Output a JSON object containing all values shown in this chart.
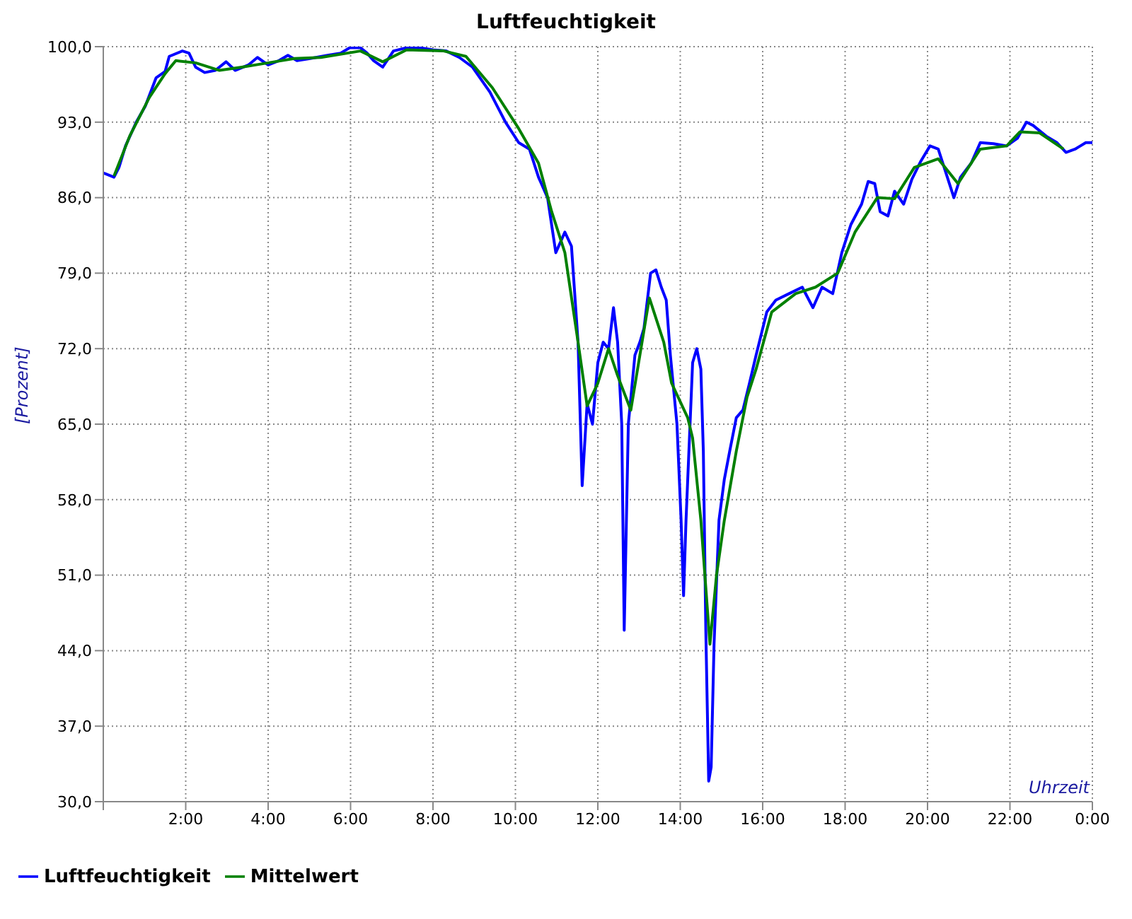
{
  "chart_data": {
    "type": "line",
    "title": "Luftfeuchtigkeit",
    "xlabel": "Uhrzeit",
    "ylabel": "[Prozent]",
    "xlim": [
      0,
      24
    ],
    "xticks": [
      {
        "value": 0,
        "label": null
      },
      {
        "value": 2,
        "label": "2:00"
      },
      {
        "value": 4,
        "label": "4:00"
      },
      {
        "value": 6,
        "label": "6:00"
      },
      {
        "value": 8,
        "label": "8:00"
      },
      {
        "value": 10,
        "label": "10:00"
      },
      {
        "value": 12,
        "label": "12:00"
      },
      {
        "value": 14,
        "label": "14:00"
      },
      {
        "value": 16,
        "label": "16:00"
      },
      {
        "value": 18,
        "label": "18:00"
      },
      {
        "value": 20,
        "label": "20:00"
      },
      {
        "value": 22,
        "label": "22:00"
      },
      {
        "value": 24,
        "label": "0:00"
      }
    ],
    "ylim": [
      30,
      100
    ],
    "yticks": [
      {
        "value": 30,
        "label": "30,0"
      },
      {
        "value": 37,
        "label": "37,0"
      },
      {
        "value": 44,
        "label": "44,0"
      },
      {
        "value": 51,
        "label": "51,0"
      },
      {
        "value": 58,
        "label": "58,0"
      },
      {
        "value": 65,
        "label": "65,0"
      },
      {
        "value": 72,
        "label": "72,0"
      },
      {
        "value": 79,
        "label": "79,0"
      },
      {
        "value": 86,
        "label": "86,0"
      },
      {
        "value": 93,
        "label": "93,0"
      },
      {
        "value": 100,
        "label": "100,0"
      }
    ],
    "grid": true,
    "legend": "bottom left",
    "marker": "none",
    "line_style": "solid",
    "series": [
      {
        "name": "Luftfeuchtigkeit",
        "color": "#0000ff",
        "x": [
          0,
          0.26,
          0.38,
          0.54,
          0.8,
          1.02,
          1.28,
          1.5,
          1.6,
          1.92,
          2.08,
          2.24,
          2.46,
          2.72,
          2.98,
          3.2,
          3.52,
          3.74,
          4,
          4.26,
          4.48,
          4.7,
          5.02,
          5.44,
          5.76,
          5.98,
          6.24,
          6.4,
          6.56,
          6.78,
          7.04,
          7.36,
          7.68,
          8,
          8.32,
          8.64,
          8.96,
          9.38,
          9.76,
          10.08,
          10.34,
          10.56,
          10.78,
          10.98,
          11.2,
          11.36,
          11.52,
          11.62,
          11.74,
          11.87,
          12,
          12.13,
          12.26,
          12.38,
          12.48,
          12.58,
          12.64,
          12.74,
          12.9,
          13.02,
          13.12,
          13.28,
          13.41,
          13.54,
          13.66,
          13.76,
          13.92,
          14.02,
          14.08,
          14.14,
          14.21,
          14.3,
          14.4,
          14.5,
          14.56,
          14.62,
          14.69,
          14.75,
          14.82,
          14.94,
          15.07,
          15.2,
          15.36,
          15.52,
          15.68,
          15.84,
          16.1,
          16.32,
          16.64,
          16.96,
          17.22,
          17.44,
          17.7,
          17.92,
          18.14,
          18.4,
          18.56,
          18.72,
          18.85,
          19.04,
          19.2,
          19.42,
          19.62,
          19.84,
          20.06,
          20.26,
          20.48,
          20.64,
          20.8,
          21.06,
          21.28,
          21.6,
          21.92,
          22.18,
          22.4,
          22.56,
          22.88,
          23.14,
          23.36,
          23.58,
          23.84,
          24
        ],
        "values": [
          88.3,
          87.9,
          88.8,
          90.8,
          93,
          94.5,
          97.1,
          97.7,
          99.1,
          99.6,
          99.4,
          98.1,
          97.6,
          97.8,
          98.6,
          97.8,
          98.3,
          99,
          98.3,
          98.7,
          99.2,
          98.7,
          98.9,
          99.2,
          99.4,
          99.9,
          99.9,
          99.4,
          98.7,
          98.1,
          99.6,
          99.9,
          99.9,
          99.7,
          99.6,
          99,
          98.1,
          95.8,
          93,
          91.1,
          90.5,
          87.9,
          86,
          80.9,
          82.8,
          81.5,
          72.6,
          59.3,
          66.9,
          65,
          70.7,
          72.6,
          72,
          75.8,
          72.6,
          65,
          45.9,
          65,
          71.4,
          72.6,
          73.9,
          79,
          79.3,
          77.7,
          76.5,
          71.4,
          65,
          56.1,
          49.1,
          56.1,
          62.5,
          70.7,
          72,
          70.1,
          62.5,
          45.9,
          31.9,
          33.2,
          44.6,
          56.1,
          59.9,
          62.5,
          65.6,
          66.3,
          68.8,
          71.4,
          75.4,
          76.5,
          77.1,
          77.7,
          75.8,
          77.7,
          77.1,
          80.9,
          83.5,
          85.4,
          87.5,
          87.3,
          84.7,
          84.3,
          86.6,
          85.4,
          87.7,
          89.4,
          90.8,
          90.5,
          87.9,
          86,
          87.9,
          89.2,
          91.1,
          91,
          90.8,
          91.5,
          93,
          92.7,
          91.7,
          91.1,
          90.2,
          90.5,
          91.1,
          91.1
        ]
      },
      {
        "name": "Mittelwert",
        "color": "#008000",
        "x": [
          0.26,
          0.64,
          1.12,
          1.5,
          1.76,
          2.24,
          2.82,
          3.36,
          4,
          4.64,
          5.28,
          6.24,
          6.78,
          7.36,
          8.26,
          8.8,
          9.44,
          10.08,
          10.56,
          10.88,
          11.2,
          11.52,
          11.74,
          12,
          12.26,
          12.48,
          12.8,
          13.02,
          13.25,
          13.6,
          13.79,
          14.18,
          14.3,
          14.5,
          14.72,
          14.88,
          15.07,
          15.36,
          15.62,
          15.84,
          16.22,
          16.8,
          17.28,
          17.82,
          18.24,
          18.78,
          19.2,
          19.68,
          20.26,
          20.74,
          21.28,
          21.92,
          22.24,
          22.72,
          23.3
        ],
        "values": [
          88,
          91.7,
          95.3,
          97.5,
          98.7,
          98.5,
          97.8,
          98.1,
          98.5,
          98.9,
          99,
          99.6,
          98.6,
          99.7,
          99.6,
          99.1,
          96.2,
          92.4,
          89.2,
          84.7,
          80.9,
          72.6,
          66.7,
          68.8,
          72,
          69.5,
          66.3,
          71.4,
          76.7,
          72.6,
          68.8,
          65.6,
          63.7,
          56.1,
          44.6,
          51,
          56.1,
          62.5,
          67.5,
          70.1,
          75.4,
          77.1,
          77.7,
          79,
          82.8,
          86,
          85.9,
          88.8,
          89.6,
          87.3,
          90.5,
          90.8,
          92.1,
          92,
          90.5
        ]
      }
    ]
  }
}
